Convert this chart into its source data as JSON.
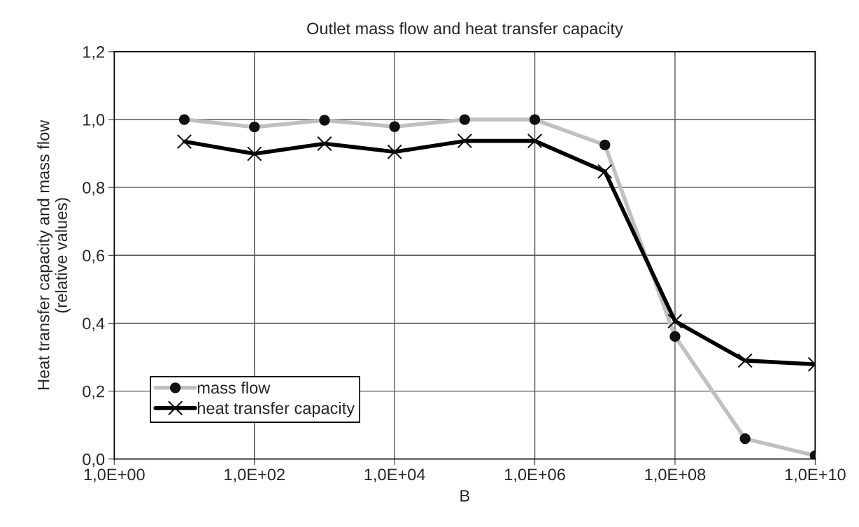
{
  "chart_data": {
    "type": "line",
    "title": "Outlet mass flow and heat transfer capacity",
    "xlabel": "B",
    "ylabel": "Heat transfer capacity and mass flow\n(relative values)",
    "categories": [
      "1,0E+00",
      null,
      "1,0E+02",
      null,
      "1,0E+04",
      null,
      "1,0E+06",
      null,
      "1,0E+08",
      null,
      "1,0E+10"
    ],
    "series": [
      {
        "name": "mass flow",
        "color": "#c0c0c0",
        "marker": "circle",
        "values": [
          null,
          1.0,
          0.978,
          0.998,
          0.979,
          1.0,
          1.0,
          0.925,
          0.361,
          0.06,
          0.01
        ]
      },
      {
        "name": "heat transfer capacity",
        "color": "#000000",
        "marker": "cross",
        "values": [
          null,
          0.935,
          0.899,
          0.929,
          0.905,
          0.937,
          0.937,
          0.847,
          0.406,
          0.29,
          0.279
        ]
      }
    ],
    "ylim": [
      0,
      1.2
    ],
    "yticks": [
      {
        "value": 0,
        "label": "0,0"
      },
      {
        "value": 0.2,
        "label": "0,2"
      },
      {
        "value": 0.4,
        "label": "0,4"
      },
      {
        "value": 0.6,
        "label": "0,6"
      },
      {
        "value": 0.8,
        "label": "0,8"
      },
      {
        "value": 1.0,
        "label": "1,0"
      },
      {
        "value": 1.2,
        "label": "1,2"
      }
    ],
    "grid": true,
    "legend": "bottom left"
  }
}
